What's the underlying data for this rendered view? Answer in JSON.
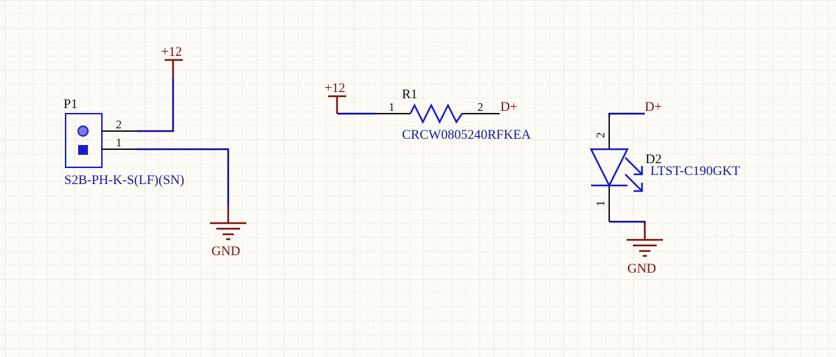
{
  "schematic": {
    "colors": {
      "background": "#fcfbf5",
      "grid": "#e9e7dc",
      "wire": "#0a0aa6",
      "component": "#1a1ad0",
      "power": "#7a1010",
      "pin_line": "#111111",
      "designator": "#1a1a9a"
    },
    "p1": {
      "designator": "P1",
      "part": "S2B-PH-K-S(LF)(SN)",
      "pin_top": "2",
      "pin_bottom": "1"
    },
    "p1_supply": {
      "net": "+12",
      "icon": "power-bar-icon"
    },
    "p1_ground": {
      "net": "GND",
      "icon": "ground-icon"
    },
    "r1": {
      "designator": "R1",
      "part": "CRCW0805240RFKEA",
      "pin_left": "1",
      "pin_right": "2",
      "supply_net": "+12",
      "output_net": "D+"
    },
    "d2": {
      "designator": "D2",
      "part": "LTST-C190GKT",
      "pin_anode": "2",
      "pin_cathode": "1",
      "input_net": "D+",
      "ground_net": "GND",
      "icon": "led-icon"
    }
  }
}
